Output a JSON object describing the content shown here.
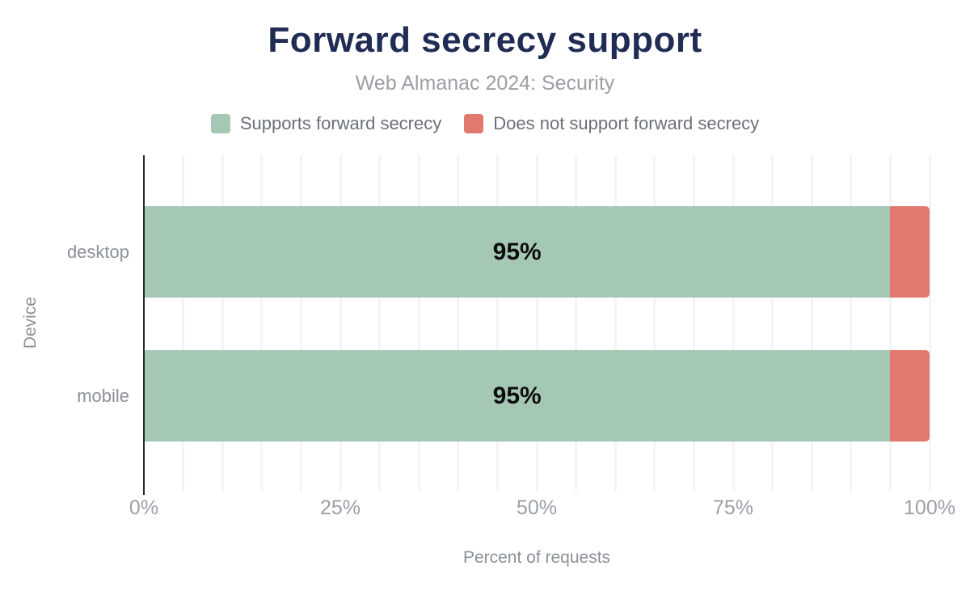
{
  "chart_data": {
    "type": "bar",
    "orientation": "horizontal",
    "stacked": true,
    "title": "Forward secrecy support",
    "subtitle": "Web Almanac 2024: Security",
    "categories": [
      "desktop",
      "mobile"
    ],
    "series": [
      {
        "name": "Supports forward secrecy",
        "color": "#a4c8b4",
        "values": [
          95,
          95
        ]
      },
      {
        "name": "Does not support forward secrecy",
        "color": "#e2796e",
        "values": [
          5,
          5
        ]
      }
    ],
    "bar_labels": [
      "95%",
      "95%"
    ],
    "xlabel": "Percent of requests",
    "ylabel": "Device",
    "xlim": [
      0,
      100
    ],
    "xticks": [
      "0%",
      "25%",
      "50%",
      "75%",
      "100%"
    ],
    "grid": "vertical gridlines every 5%",
    "legend_position": "top"
  },
  "colors": {
    "title": "#202c54",
    "subtitle": "#9b9ea4",
    "axis_text": "#8b9198",
    "tick_text": "#9aa0a6",
    "bar_value_label": "#0d0d0d",
    "axis_line": "#25282d",
    "gridline": "#f4f4f6",
    "background": "#ffffff"
  }
}
